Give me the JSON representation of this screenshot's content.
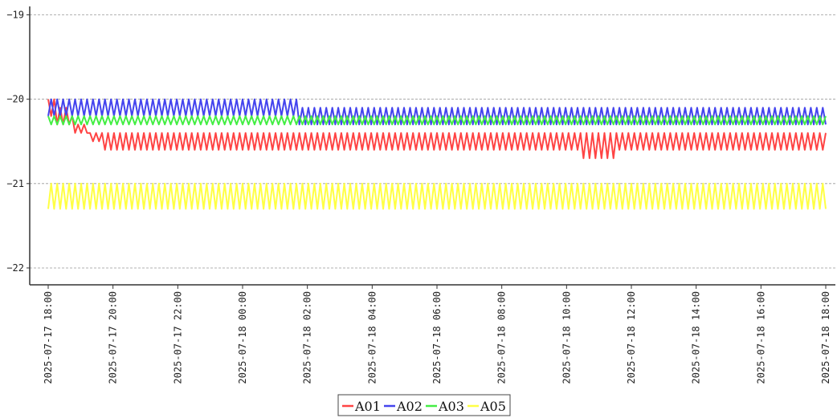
{
  "chart_data": {
    "type": "line",
    "title": "",
    "xlabel": "",
    "ylabel": "",
    "ylim": [
      -22.2,
      -18.9
    ],
    "y_ticks": [
      -19,
      -20,
      -21,
      -22
    ],
    "y_tick_labels": [
      "−19",
      "−20",
      "−21",
      "−22"
    ],
    "x_ticks": [
      "2025-07-17 18:00",
      "2025-07-17 20:00",
      "2025-07-17 22:00",
      "2025-07-18 00:00",
      "2025-07-18 02:00",
      "2025-07-18 04:00",
      "2025-07-18 06:00",
      "2025-07-18 08:00",
      "2025-07-18 10:00",
      "2025-07-18 12:00",
      "2025-07-18 14:00",
      "2025-07-18 16:00",
      "2025-07-18 18:00"
    ],
    "x_range": [
      "2025-07-17 18:00",
      "2025-07-18 18:00"
    ],
    "grid": "horizontal dashed",
    "legend": {
      "placement": "bottom-center"
    },
    "series": [
      {
        "name": "A01",
        "color": "#ff4444",
        "x": [
          "2025-07-17 18:00",
          "2025-07-17 18:30",
          "2025-07-17 19:00",
          "2025-07-17 19:30",
          "2025-07-17 20:00",
          "2025-07-18 10:00",
          "2025-07-18 11:00",
          "2025-07-18 12:00",
          "2025-07-18 18:00"
        ],
        "values_range_low": [
          -20.2,
          -20.3,
          -20.4,
          -20.5,
          -20.6,
          -20.6,
          -20.7,
          -20.6,
          -20.6
        ],
        "values_range_high": [
          -20.0,
          -20.1,
          -20.3,
          -20.4,
          -20.4,
          -20.4,
          -20.4,
          -20.4,
          -20.4
        ]
      },
      {
        "name": "A02",
        "color": "#4444ee",
        "x": [
          "2025-07-17 18:00",
          "2025-07-18 09:30",
          "2025-07-18 18:00"
        ],
        "values_range_low": [
          -20.2,
          -20.3,
          -20.3
        ],
        "values_range_high": [
          -20.0,
          -20.1,
          -20.1
        ]
      },
      {
        "name": "A03",
        "color": "#44ee44",
        "x": [
          "2025-07-17 18:00",
          "2025-07-18 18:00"
        ],
        "values_range_low": [
          -20.3,
          -20.3
        ],
        "values_range_high": [
          -20.2,
          -20.2
        ]
      },
      {
        "name": "A05",
        "color": "#ffff44",
        "x": [
          "2025-07-17 18:00",
          "2025-07-18 18:00"
        ],
        "values_range_low": [
          -21.3,
          -21.3
        ],
        "values_range_high": [
          -21.0,
          -21.0
        ]
      }
    ]
  }
}
